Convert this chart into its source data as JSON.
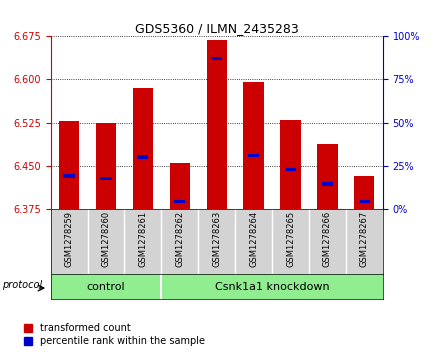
{
  "title": "GDS5360 / ILMN_2435283",
  "samples": [
    "GSM1278259",
    "GSM1278260",
    "GSM1278261",
    "GSM1278262",
    "GSM1278263",
    "GSM1278264",
    "GSM1278265",
    "GSM1278266",
    "GSM1278267"
  ],
  "bar_tops": [
    6.528,
    6.525,
    6.585,
    6.454,
    6.668,
    6.595,
    6.53,
    6.488,
    6.432
  ],
  "bar_bottom": 6.375,
  "blue_values": [
    6.432,
    6.428,
    6.465,
    6.388,
    6.636,
    6.468,
    6.443,
    6.418,
    6.388
  ],
  "ylim": [
    6.375,
    6.675
  ],
  "y_ticks_left": [
    6.375,
    6.45,
    6.525,
    6.6,
    6.675
  ],
  "y_ticks_right": [
    0,
    25,
    50,
    75,
    100
  ],
  "groups": [
    {
      "label": "control",
      "span": [
        0,
        2
      ]
    },
    {
      "label": "Csnk1a1 knockdown",
      "span": [
        3,
        8
      ]
    }
  ],
  "protocol_label": "protocol",
  "bar_color": "#cc0000",
  "blue_color": "#0000cc",
  "grid_color": "#000000",
  "bg_plot": "#ffffff",
  "bg_xtick": "#d3d3d3",
  "bg_group": "#90ee90",
  "left_axis_color": "#cc0000",
  "right_axis_color": "#0000cc",
  "legend_red": "transformed count",
  "legend_blue": "percentile rank within the sample",
  "bar_width": 0.55
}
